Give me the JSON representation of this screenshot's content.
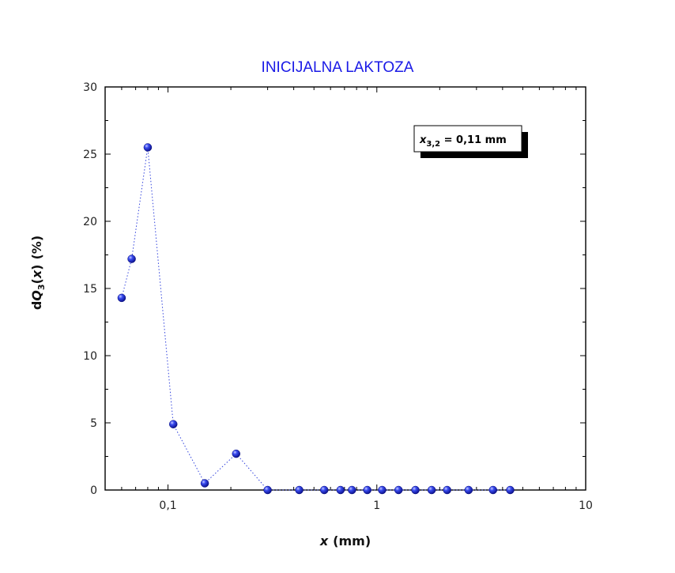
{
  "chart_data": {
    "type": "scatter",
    "title": "INICIJALNA LAKTOZA",
    "xlabel_var": "x",
    "xlabel_unit": "(mm)",
    "ylabel_prefix": "d",
    "ylabel_var": "Q",
    "ylabel_sub": "3",
    "ylabel_arg": "x",
    "ylabel_unit": "(%)",
    "x_scale": "log",
    "xlim": [
      0.05,
      10
    ],
    "ylim": [
      0,
      30
    ],
    "x_ticks": [
      {
        "value": 0.1,
        "label": "0,1"
      },
      {
        "value": 1,
        "label": "1"
      },
      {
        "value": 10,
        "label": "10"
      }
    ],
    "y_ticks": [
      {
        "value": 0,
        "label": "0"
      },
      {
        "value": 5,
        "label": "5"
      },
      {
        "value": 10,
        "label": "10"
      },
      {
        "value": 15,
        "label": "15"
      },
      {
        "value": 20,
        "label": "20"
      },
      {
        "value": 25,
        "label": "25"
      },
      {
        "value": 30,
        "label": "30"
      }
    ],
    "series": [
      {
        "color": "#1f2fd6",
        "line_style": "dotted",
        "marker": "sphere",
        "x": [
          0.06,
          0.067,
          0.08,
          0.106,
          0.15,
          0.212,
          0.3,
          0.425,
          0.56,
          0.67,
          0.76,
          0.9,
          1.06,
          1.27,
          1.53,
          1.83,
          2.17,
          2.75,
          3.6,
          4.35
        ],
        "y": [
          14.3,
          17.2,
          25.5,
          4.9,
          0.5,
          2.7,
          0,
          0,
          0,
          0,
          0,
          0,
          0,
          0,
          0,
          0,
          0,
          0,
          0,
          0
        ]
      }
    ],
    "annotation": {
      "var": "x",
      "sub": "3,2",
      "text": " = 0,11 mm",
      "position": "top-right"
    },
    "grid": false,
    "mirror_ticks": true
  }
}
